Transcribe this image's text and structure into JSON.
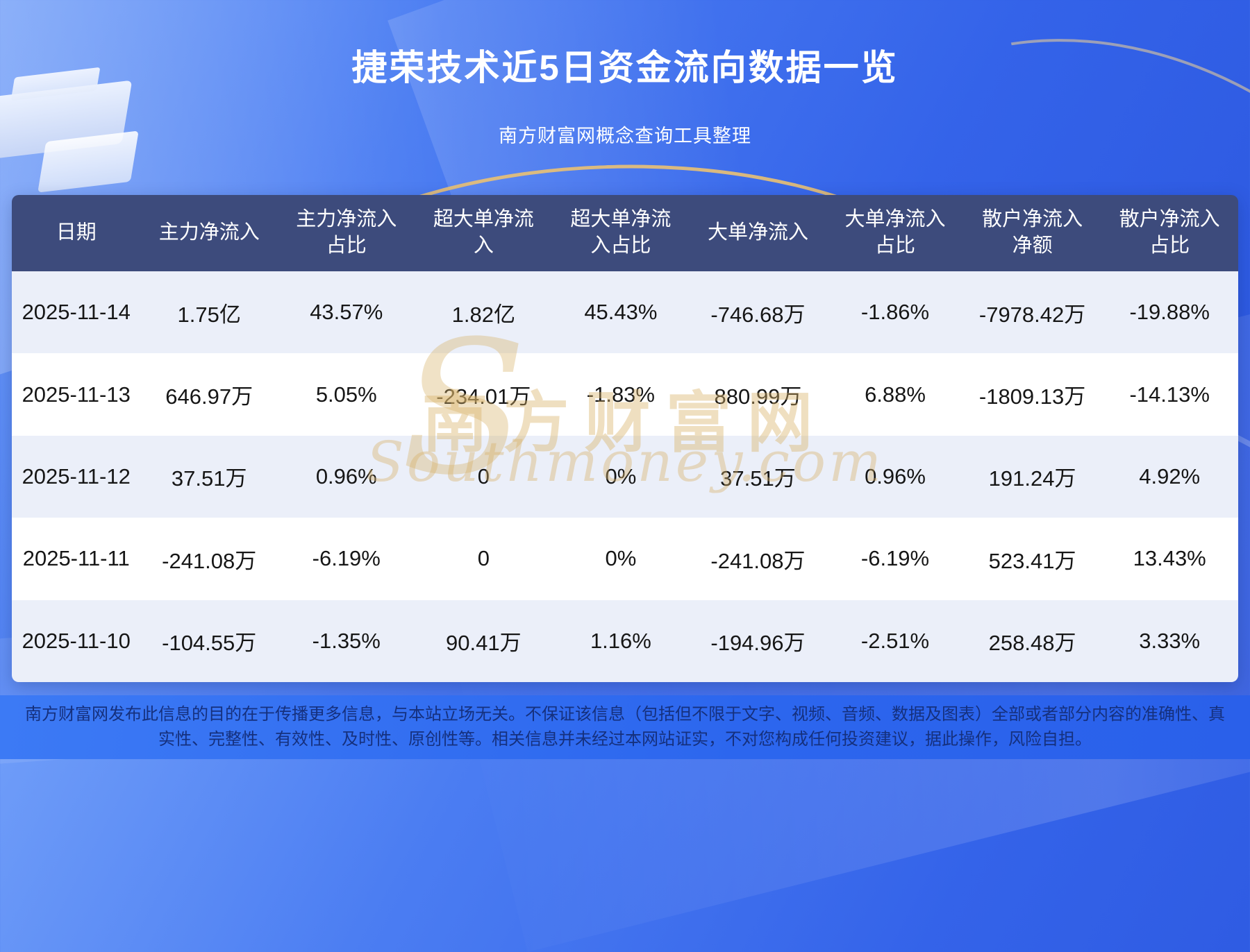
{
  "header": {
    "title": "捷荣技术近5日资金流向数据一览",
    "subtitle": "南方财富网概念查询工具整理"
  },
  "chart_data": {
    "type": "table",
    "title": "捷荣技术近5日资金流向数据一览",
    "subtitle": "南方财富网概念查询工具整理",
    "columns": [
      "日期",
      "主力净流入",
      "主力净流入占比",
      "超大单净流入",
      "超大单净流入占比",
      "大单净流入",
      "大单净流入占比",
      "散户净流入净额",
      "散户净流入占比"
    ],
    "rows": [
      [
        "2025-11-14",
        "1.75亿",
        "43.57%",
        "1.82亿",
        "45.43%",
        "-746.68万",
        "-1.86%",
        "-7978.42万",
        "-19.88%"
      ],
      [
        "2025-11-13",
        "646.97万",
        "5.05%",
        "-234.01万",
        "-1.83%",
        "880.99万",
        "6.88%",
        "-1809.13万",
        "-14.13%"
      ],
      [
        "2025-11-12",
        "37.51万",
        "0.96%",
        "0",
        "0%",
        "37.51万",
        "0.96%",
        "191.24万",
        "4.92%"
      ],
      [
        "2025-11-11",
        "-241.08万",
        "-6.19%",
        "0",
        "0%",
        "-241.08万",
        "-6.19%",
        "523.41万",
        "13.43%"
      ],
      [
        "2025-11-10",
        "-104.55万",
        "-1.35%",
        "90.41万",
        "1.16%",
        "-194.96万",
        "-2.51%",
        "258.48万",
        "3.33%"
      ]
    ]
  },
  "watermark": {
    "big_letter": "S",
    "text_cn": "南方财富网",
    "text_en": "Southmoney.com"
  },
  "footer": {
    "disclaimer": "南方财富网发布此信息的目的在于传播更多信息，与本站立场无关。不保证该信息（包括但不限于文字、视频、音频、数据及图表）全部或者部分内容的准确性、真实性、完整性、有效性、及时性、原创性等。相关信息并未经过本网站证实，不对您构成任何投资建议，据此操作，风险自担。"
  },
  "colors": {
    "background_top": "#6e9cf8",
    "background_bottom": "#2a55dd",
    "table_header_bg": "#3d4b7c",
    "row_stripe_bg": "#ebeff9",
    "footer_bar_bg": "#2c66ee",
    "footer_text": "#15307d",
    "watermark_gold": "#d8b26a",
    "title_text": "#ffffff"
  }
}
